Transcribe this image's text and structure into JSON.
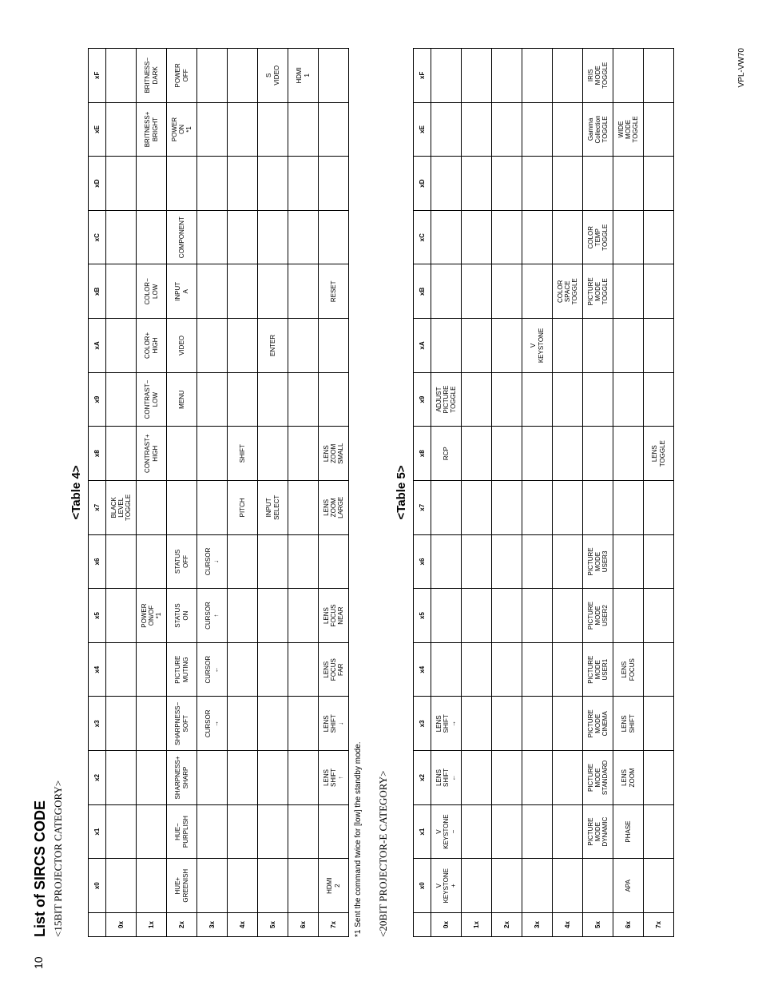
{
  "page": {
    "page_number": "10",
    "model": "VPL-VW70",
    "doc_title": "List of SIRCS CODE",
    "footnote": "*1 Sent the command twice for [low] the standby mode."
  },
  "tables": {
    "t4": {
      "category": "<15BIT PROJECTOR CATEGORY>",
      "label": "<Table 4>",
      "col_headers": [
        "",
        "x0",
        "x1",
        "x2",
        "x3",
        "x4",
        "x5",
        "x6",
        "x7",
        "x8",
        "x9",
        "xA",
        "xB",
        "xC",
        "xD",
        "xE",
        "xF"
      ],
      "rows": [
        {
          "h": "0x",
          "c": [
            "",
            "",
            "",
            "",
            "",
            "",
            "",
            "BLACK LEVEL TOGGLE",
            "",
            "",
            "",
            "",
            "",
            "",
            "",
            ""
          ]
        },
        {
          "h": "1x",
          "c": [
            "",
            "",
            "",
            "",
            "",
            "POWER ON/OF *1",
            "",
            "",
            "CONTRAST+ HIGH",
            "CONTRAST− LOW",
            "COLOR+ HIGH",
            "COLOR− LOW",
            "",
            "",
            "BRITNESS+ BRIGHT",
            "BRITNESS− DARK"
          ]
        },
        {
          "h": "2x",
          "c": [
            "HUE+ GREENISH",
            "HUE− PURPLISH",
            "SHARPNESS+ SHARP",
            "SHARPNESS− SOFT",
            "PICTURE MUTING",
            "STATUS ON",
            "STATUS OFF",
            "",
            "",
            "MENU",
            "VIDEO",
            "INPUT A",
            "COMPONENT",
            "",
            "POWER ON *1",
            "POWER OFF"
          ]
        },
        {
          "h": "3x",
          "c": [
            "",
            "",
            "",
            "CURSOR →",
            "CURSOR ←",
            "CURSOR ↑",
            "CURSOR ↓",
            "",
            "",
            "",
            "",
            "",
            "",
            "",
            "",
            ""
          ]
        },
        {
          "h": "4x",
          "c": [
            "",
            "",
            "",
            "",
            "",
            "",
            "",
            "PITCH",
            "SHIFT",
            "",
            "",
            "",
            "",
            "",
            "",
            ""
          ]
        },
        {
          "h": "5x",
          "c": [
            "",
            "",
            "",
            "",
            "",
            "",
            "",
            "INPUT SELECT",
            "",
            "",
            "ENTER",
            "",
            "",
            "",
            "",
            "S VIDEO"
          ]
        },
        {
          "h": "6x",
          "c": [
            "",
            "",
            "",
            "",
            "",
            "",
            "",
            "",
            "",
            "",
            "",
            "",
            "",
            "",
            "",
            "HDMI 1"
          ]
        },
        {
          "h": "7x",
          "c": [
            "HDMI 2",
            "",
            "LENS SHIFT ↑",
            "LENS SHIFT ↓",
            "LENS FOCUS FAR",
            "LENS FOCUS NEAR",
            "",
            "LENS ZOOM LARGE",
            "LENS ZOOM SMALL",
            "",
            "",
            "RESET",
            "",
            "",
            "",
            ""
          ]
        }
      ]
    },
    "t5": {
      "category": "<20BIT PROJECTOR-E CATEGORY>",
      "label": "<Table 5>",
      "col_headers": [
        "",
        "x0",
        "x1",
        "x2",
        "x3",
        "x4",
        "x5",
        "x6",
        "x7",
        "x8",
        "x9",
        "xA",
        "xB",
        "xC",
        "xD",
        "xE",
        "xF"
      ],
      "rows": [
        {
          "h": "0x",
          "c": [
            "V KEYSTONE +",
            "V KEYSTONE −",
            "LENS SHIFT ←",
            "LENS SHIFT →",
            "",
            "",
            "",
            "",
            "RCP",
            "ADJUST PICTURE TOGGLE",
            "",
            "",
            "",
            "",
            "",
            ""
          ]
        },
        {
          "h": "1x",
          "c": [
            "",
            "",
            "",
            "",
            "",
            "",
            "",
            "",
            "",
            "",
            "",
            "",
            "",
            "",
            "",
            ""
          ]
        },
        {
          "h": "2x",
          "c": [
            "",
            "",
            "",
            "",
            "",
            "",
            "",
            "",
            "",
            "",
            "",
            "",
            "",
            "",
            "",
            ""
          ]
        },
        {
          "h": "3x",
          "c": [
            "",
            "",
            "",
            "",
            "",
            "",
            "",
            "",
            "",
            "",
            "V KEYSTONE",
            "",
            "",
            "",
            "",
            ""
          ]
        },
        {
          "h": "4x",
          "c": [
            "",
            "",
            "",
            "",
            "",
            "",
            "",
            "",
            "",
            "",
            "",
            "COLOR SPACE TOGGLE",
            "",
            "",
            "",
            ""
          ]
        },
        {
          "h": "5x",
          "c": [
            "",
            "PICTURE MODE DYNAMIC",
            "PICTURE MODE STANDARD",
            "PICTURE MODE CINEMA",
            "PICTURE MODE USER1",
            "PICTURE MODE USER2",
            "PICTURE MODE USER3",
            "",
            "",
            "",
            "",
            "PICTURE MODE TOGGLE",
            "COLOR TEMP TOGGLE",
            "",
            "Gamma Collection TOGGLE",
            "IRIS MODE TOGGLE"
          ]
        },
        {
          "h": "6x",
          "c": [
            "APA",
            "PHASE",
            "LENS ZOOM",
            "LENS SHIFT",
            "LENS FOCUS",
            "",
            "",
            "",
            "",
            "",
            "",
            "",
            "",
            "",
            "WIDE MODE TOGGLE",
            ""
          ]
        },
        {
          "h": "7x",
          "c": [
            "",
            "",
            "",
            "",
            "",
            "",
            "",
            "",
            "LENS TOGGLE",
            "",
            "",
            "",
            "",
            "",
            "",
            ""
          ]
        }
      ]
    }
  }
}
